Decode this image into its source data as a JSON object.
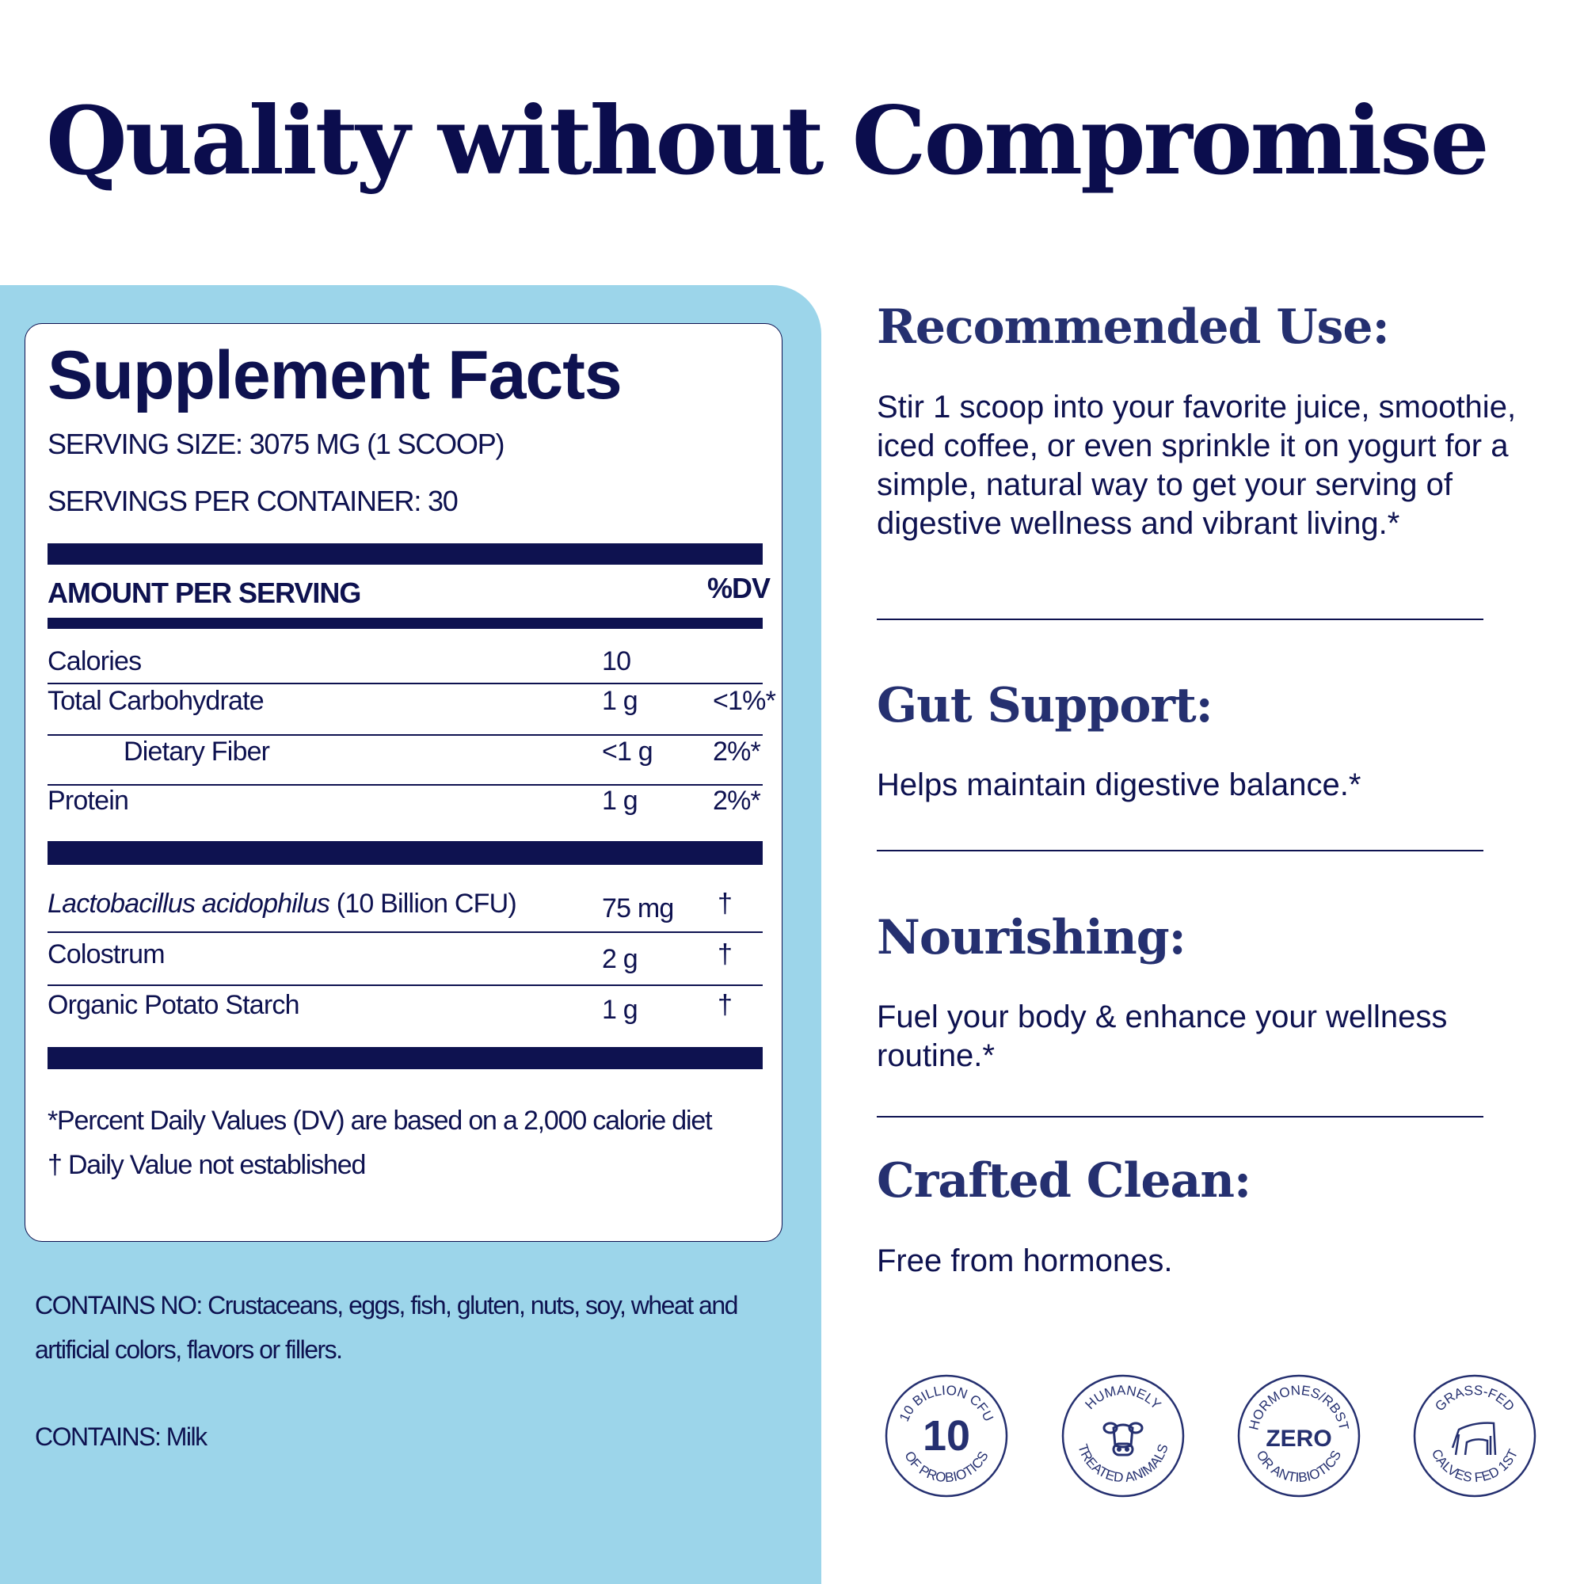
{
  "title": "Quality without Compromise",
  "colors": {
    "navy": "#0e1250",
    "panel": "#9cd5ea",
    "heading": "#253070"
  },
  "facts": {
    "title": "Supplement Facts",
    "serving_size": "SERVING SIZE: 3075 MG (1 SCOOP)",
    "servings_per_container": "SERVINGS PER CONTAINER: 30",
    "amount_header": "AMOUNT PER SERVING",
    "dv_header": "%DV",
    "nutrients": [
      {
        "name": "Calories",
        "amount": "10",
        "dv": ""
      },
      {
        "name": "Total Carbohydrate",
        "amount": "1 g",
        "dv": "<1%*"
      },
      {
        "name": "Dietary Fiber",
        "amount": "<1 g",
        "dv": "2%*"
      },
      {
        "name": "Protein",
        "amount": "1 g",
        "dv": "2%*"
      }
    ],
    "ingredients": [
      {
        "name_italic": "Lactobacillus acidophilus",
        "name_rest": " (10 Billion CFU)",
        "amount": "75 mg",
        "dv": "†"
      },
      {
        "name_italic": "",
        "name_rest": "Colostrum",
        "amount": "2 g",
        "dv": "†"
      },
      {
        "name_italic": "",
        "name_rest": "Organic Potato Starch",
        "amount": "1 g",
        "dv": "†"
      }
    ],
    "footnote1": "*Percent Daily Values (DV) are based on a 2,000 calorie diet",
    "footnote2": "† Daily Value not established"
  },
  "contains_no_line1": "CONTAINS NO: Crustaceans, eggs, fish, gluten, nuts, soy, wheat and",
  "contains_no_line2": "artificial colors, flavors or fillers.",
  "contains": "CONTAINS: Milk",
  "sections": [
    {
      "heading": "Recommended Use:",
      "text": "Stir 1 scoop into your favorite juice, smoothie, iced coffee, or even sprinkle it on yogurt for a simple, natural way to get your serving of digestive wellness and vibrant living.*"
    },
    {
      "heading": "Gut Support:",
      "text": "Helps maintain digestive balance.*"
    },
    {
      "heading": "Nourishing:",
      "text": "Fuel your body & enhance your wellness routine.*"
    },
    {
      "heading": "Crafted Clean:",
      "text": "Free from hormones."
    }
  ],
  "badges": [
    {
      "icon": "number-10",
      "top": "10 BILLION CFU",
      "center": "10",
      "bottom": "OF PROBIOTICS"
    },
    {
      "icon": "cow-face-icon",
      "top": "HUMANELY",
      "center": "",
      "bottom": "TREATED ANIMALS"
    },
    {
      "icon": "zero-text",
      "top": "HORMONES/RBST",
      "center": "ZERO",
      "bottom": "OR ANTIBIOTICS"
    },
    {
      "icon": "cow-calf-icon",
      "top": "GRASS-FED",
      "center": "",
      "bottom": "CALVES FED 1ST"
    }
  ]
}
